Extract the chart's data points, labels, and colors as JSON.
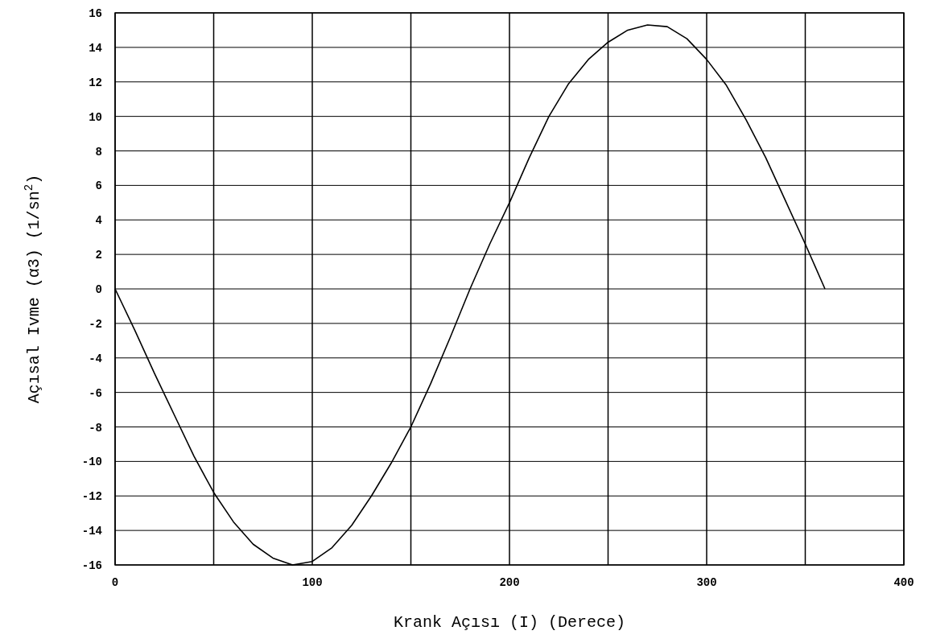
{
  "chart_data": {
    "type": "line",
    "xlabel": "Krank Açısı (I) (Derece)",
    "ylabel": "Açısal Ivme (α3) (1/sn$^{2}$)",
    "x": [
      0,
      10,
      20,
      30,
      40,
      50,
      60,
      70,
      80,
      90,
      100,
      110,
      120,
      130,
      140,
      150,
      160,
      170,
      180,
      190,
      200,
      210,
      220,
      230,
      240,
      250,
      260,
      270,
      280,
      290,
      300,
      310,
      320,
      330,
      340,
      350,
      360
    ],
    "series": [
      {
        "color": "#000000",
        "values": [
          0,
          -2.4,
          -4.9,
          -7.3,
          -9.7,
          -11.8,
          -13.5,
          -14.8,
          -15.6,
          -16,
          -15.8,
          -15,
          -13.7,
          -12,
          -10.1,
          -8,
          -5.5,
          -2.8,
          0,
          2.6,
          5,
          7.6,
          10,
          11.9,
          13.3,
          14.3,
          15,
          15.3,
          15.2,
          14.5,
          13.3,
          11.8,
          9.8,
          7.6,
          5.1,
          2.6,
          0
        ]
      }
    ],
    "xlim": [
      0,
      400
    ],
    "xticks": [
      0,
      {
        "value": 50,
        "label": null
      },
      100,
      {
        "value": 150,
        "label": null
      },
      200,
      {
        "value": 250,
        "label": null
      },
      300,
      {
        "value": 350,
        "label": null
      },
      400
    ],
    "ylim": [
      -16,
      16
    ],
    "yticks": [
      -16,
      -14,
      -12,
      -10,
      -8,
      -6,
      -4,
      -2,
      0,
      2,
      4,
      6,
      8,
      10,
      12,
      14,
      16
    ],
    "grid": true,
    "marker": "none",
    "line_style": "solid"
  }
}
